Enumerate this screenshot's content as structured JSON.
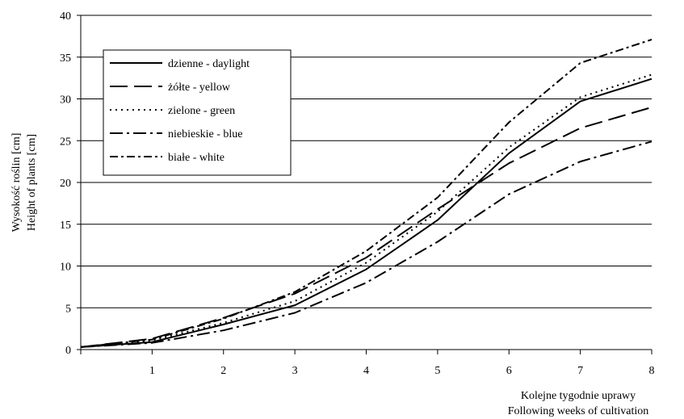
{
  "chart_data": {
    "type": "line",
    "xlabel": [
      "Kolejne tygodnie uprawy",
      "Following weeks of cultivation"
    ],
    "ylabel": [
      "Wysokość roślin [cm]",
      "Height of plants [cm]"
    ],
    "xlim": [
      0,
      8
    ],
    "ylim": [
      0,
      40
    ],
    "x_ticks": [
      1,
      2,
      3,
      4,
      5,
      6,
      7,
      8
    ],
    "y_ticks": [
      0,
      5,
      10,
      15,
      20,
      25,
      30,
      35,
      40
    ],
    "grid": "horizontal",
    "legend_position": "top-left",
    "x": [
      0,
      1,
      2,
      3,
      4,
      5,
      6,
      7,
      8
    ],
    "series": [
      {
        "name": "dzienne - daylight",
        "dash": "",
        "values": [
          0.3,
          0.9,
          3.0,
          5.3,
          9.6,
          15.5,
          23.5,
          29.7,
          32.4
        ]
      },
      {
        "name": "żółte - yellow",
        "dash": "22,8",
        "values": [
          0.3,
          1.3,
          3.8,
          6.7,
          11.0,
          16.8,
          22.3,
          26.5,
          29.0
        ]
      },
      {
        "name": "zielone - green",
        "dash": "2,5",
        "values": [
          0.3,
          1.1,
          3.2,
          5.8,
          10.4,
          16.5,
          24.2,
          30.2,
          32.9
        ]
      },
      {
        "name": "niebieskie - blue",
        "dash": "16,5,3,5",
        "values": [
          0.3,
          0.8,
          2.3,
          4.4,
          8.0,
          12.9,
          18.6,
          22.5,
          24.9
        ]
      },
      {
        "name": "białe - white",
        "dash": "10,4,3,4",
        "values": [
          0.3,
          1.2,
          3.7,
          6.9,
          11.8,
          18.2,
          27.2,
          34.3,
          37.1
        ]
      }
    ]
  }
}
